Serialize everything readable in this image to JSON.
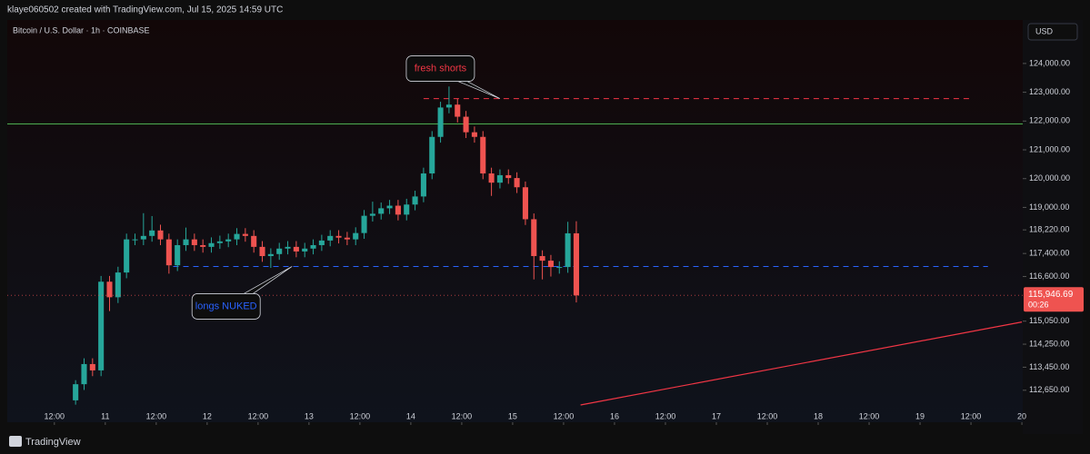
{
  "header": {
    "caption": "klaye060502 created with TradingView.com, Jul 15, 2025 14:59 UTC"
  },
  "chart_data": {
    "type": "candlestick",
    "title": "Bitcoin / U.S. Dollar · 1h · COINBASE",
    "currency": "USD",
    "x": [
      16,
      18,
      20,
      22,
      24,
      26,
      28,
      30,
      32,
      34,
      36,
      38,
      40,
      42,
      44,
      46,
      48,
      50,
      52,
      54,
      56,
      58,
      60,
      62,
      64,
      66,
      68,
      70,
      72,
      74,
      76,
      78,
      80,
      82,
      84,
      86,
      88,
      90,
      92,
      94,
      96,
      98,
      100,
      102,
      104,
      106,
      108,
      110,
      112,
      114,
      116,
      118,
      120,
      122,
      124,
      126,
      128,
      130,
      132,
      134
    ],
    "open": [
      112300,
      112860,
      113560,
      113340,
      116420,
      115880,
      116740,
      117890,
      117890,
      118010,
      118200,
      117890,
      116990,
      117690,
      117890,
      117690,
      117630,
      117760,
      117820,
      117890,
      118080,
      118010,
      117630,
      117310,
      117380,
      117570,
      117630,
      117470,
      117570,
      117690,
      117850,
      118010,
      117950,
      117890,
      118110,
      118710,
      118780,
      118970,
      119060,
      118750,
      119100,
      119380,
      120180,
      121450,
      122470,
      122570,
      122150,
      121610,
      121450,
      120180,
      119860,
      120120,
      120020,
      119700,
      118590,
      117310,
      117150,
      116930,
      116930,
      118100
    ],
    "high": [
      113000,
      113760,
      113760,
      116620,
      116620,
      116940,
      118090,
      118090,
      118800,
      118700,
      118400,
      118090,
      117890,
      118300,
      118090,
      117890,
      117960,
      118020,
      118090,
      118280,
      118280,
      118210,
      117830,
      117580,
      117770,
      117830,
      117830,
      117770,
      117890,
      118050,
      118210,
      118210,
      118150,
      118310,
      118910,
      119200,
      119170,
      119260,
      119260,
      119300,
      119580,
      120380,
      121650,
      122670,
      123200,
      122770,
      122350,
      121810,
      121650,
      120380,
      120320,
      120320,
      120220,
      119900,
      118790,
      117510,
      117350,
      117130,
      118500,
      118520
    ],
    "low": [
      112150,
      112660,
      113140,
      113140,
      115400,
      115680,
      116540,
      117690,
      117690,
      117810,
      117690,
      116700,
      116790,
      117490,
      117490,
      117430,
      117430,
      117560,
      117620,
      117690,
      117810,
      117430,
      117110,
      116900,
      117180,
      117370,
      117270,
      117270,
      117370,
      117490,
      117650,
      117750,
      117690,
      117690,
      117910,
      118510,
      118580,
      118770,
      118550,
      118550,
      118900,
      119180,
      119980,
      121250,
      122270,
      121950,
      121410,
      121250,
      119980,
      119400,
      119660,
      119820,
      119500,
      118390,
      116500,
      116500,
      116600,
      116700,
      116730,
      115700
    ],
    "close": [
      112860,
      113560,
      113340,
      116420,
      115880,
      116740,
      117890,
      117890,
      118010,
      118200,
      117890,
      116990,
      117690,
      117890,
      117690,
      117630,
      117760,
      117820,
      117890,
      118080,
      118010,
      117630,
      117310,
      117380,
      117570,
      117630,
      117470,
      117570,
      117690,
      117850,
      118010,
      117950,
      117890,
      118110,
      118710,
      118780,
      118970,
      119060,
      118750,
      119100,
      119380,
      120180,
      121450,
      122470,
      122570,
      122150,
      121610,
      121450,
      120180,
      119860,
      120120,
      120020,
      119700,
      118590,
      117310,
      117150,
      116930,
      116930,
      118100,
      115946.69
    ],
    "up_color": "#26a69a",
    "down_color": "#ef5350",
    "xlim": [
      0.9,
      240.2
    ],
    "xticks": [
      {
        "value": 12,
        "label": "12:00"
      },
      {
        "value": 24,
        "label": "11"
      },
      {
        "value": 36,
        "label": "12:00"
      },
      {
        "value": 48,
        "label": "12"
      },
      {
        "value": 60,
        "label": "12:00"
      },
      {
        "value": 72,
        "label": "13"
      },
      {
        "value": 84,
        "label": "12:00"
      },
      {
        "value": 96,
        "label": "14"
      },
      {
        "value": 108,
        "label": "12:00"
      },
      {
        "value": 120,
        "label": "15"
      },
      {
        "value": 132,
        "label": "12:00"
      },
      {
        "value": 144,
        "label": "16"
      },
      {
        "value": 156,
        "label": "12:00"
      },
      {
        "value": 168,
        "label": "17"
      },
      {
        "value": 180,
        "label": "12:00"
      },
      {
        "value": 192,
        "label": "18"
      },
      {
        "value": 204,
        "label": "12:00"
      },
      {
        "value": 216,
        "label": "19"
      },
      {
        "value": 228,
        "label": "12:00"
      },
      {
        "value": 240,
        "label": "20"
      }
    ],
    "ylim": [
      111540,
      125510
    ],
    "yticks": [
      {
        "value": 124000,
        "label": "124,000.00"
      },
      {
        "value": 123000,
        "label": "123,000.00"
      },
      {
        "value": 122000,
        "label": "122,000.00"
      },
      {
        "value": 121000,
        "label": "121,000.00"
      },
      {
        "value": 120000,
        "label": "120,000.00"
      },
      {
        "value": 119000,
        "label": "119,000.00"
      },
      {
        "value": 118220,
        "label": "118,220.00"
      },
      {
        "value": 117400,
        "label": "117,400.00"
      },
      {
        "value": 116600,
        "label": "116,600.00"
      },
      {
        "value": 115050,
        "label": "115,050.00"
      },
      {
        "value": 114250,
        "label": "114,250.00"
      },
      {
        "value": 113450,
        "label": "113,450.00"
      },
      {
        "value": 112650,
        "label": "112,650.00"
      }
    ],
    "last_price": {
      "value": 115946.69,
      "label": "115,946.69"
    },
    "countdown": "00:26",
    "lines": [
      {
        "kind": "horizontal",
        "value": 122780,
        "x": [
          99,
          228
        ],
        "color": "#f23645",
        "style": "dashed"
      },
      {
        "kind": "horizontal",
        "value": 116950,
        "x": [
          40,
          232
        ],
        "color": "#2962ff",
        "style": "dashed"
      },
      {
        "kind": "horizontal",
        "value": 121900,
        "color": "#4caf50",
        "style": "solid"
      },
      {
        "kind": "trend",
        "x": [
          136,
          240
        ],
        "y": [
          112140,
          115020
        ],
        "color": "#f23645",
        "style": "solid"
      }
    ],
    "annotations": [
      {
        "text": "fresh shorts",
        "x": 117,
        "y": 122780,
        "side": "above",
        "color": "#f23645"
      },
      {
        "text": "longs NUKED",
        "x": 68,
        "y": 116950,
        "side": "below",
        "color": "#2962ff"
      }
    ]
  },
  "footer": {
    "brand": "TradingView"
  }
}
